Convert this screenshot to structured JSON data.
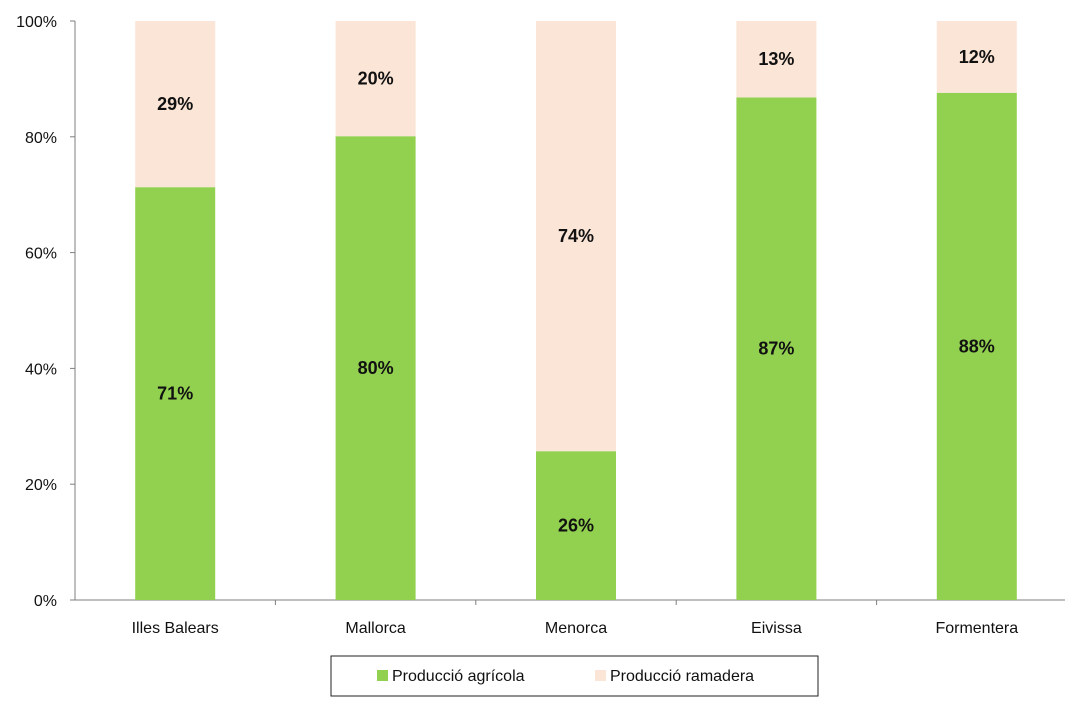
{
  "chart_data": {
    "type": "bar",
    "stacked": true,
    "categories": [
      "Illes Balears",
      "Mallorca",
      "Menorca",
      "Eivissa",
      "Formentera"
    ],
    "series": [
      {
        "name": "Producció agrícola",
        "color": "#92d050",
        "values": [
          71.3,
          80.1,
          25.7,
          86.8,
          87.6
        ],
        "labels": [
          "71%",
          "80%",
          "26%",
          "87%",
          "88%"
        ]
      },
      {
        "name": "Producció ramadera",
        "color": "#fbe5d6",
        "values": [
          28.7,
          19.9,
          74.3,
          13.2,
          12.4
        ],
        "labels": [
          "29%",
          "20%",
          "74%",
          "13%",
          "12%"
        ]
      }
    ],
    "yticks": [
      "0%",
      "20%",
      "40%",
      "60%",
      "80%",
      "100%"
    ],
    "ylim": [
      0,
      100
    ],
    "title": "",
    "xlabel": "",
    "ylabel": "",
    "grid": false,
    "legend_position": "bottom"
  }
}
